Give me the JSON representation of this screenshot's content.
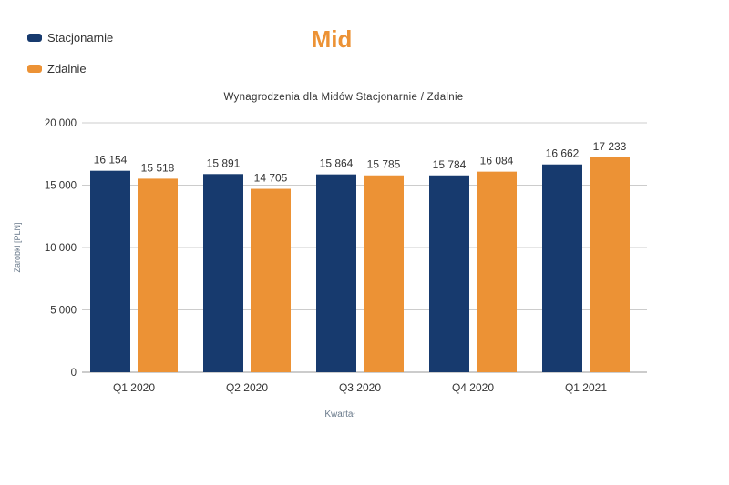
{
  "chart_data": {
    "type": "bar",
    "badge": "Mid",
    "title": "Wynagrodzenia dla Midów Stacjonarnie / Zdalnie",
    "xlabel": "Kwartał",
    "ylabel": "Zarobki [PLN]",
    "ylim": [
      0,
      20000
    ],
    "yticks": [
      0,
      5000,
      10000,
      15000,
      20000
    ],
    "ytick_labels": [
      "0",
      "5 000",
      "10 000",
      "15 000",
      "20 000"
    ],
    "categories": [
      "Q1 2020",
      "Q2 2020",
      "Q3 2020",
      "Q4 2020",
      "Q1 2021"
    ],
    "series": [
      {
        "name": "Stacjonarnie",
        "color": "#173a6e",
        "values": [
          16154,
          15891,
          15864,
          15784,
          16662
        ],
        "labels": [
          "16 154",
          "15 891",
          "15 864",
          "15 784",
          "16 662"
        ]
      },
      {
        "name": "Zdalnie",
        "color": "#ec9235",
        "values": [
          15518,
          14705,
          15785,
          16084,
          17233
        ],
        "labels": [
          "15 518",
          "14 705",
          "15 785",
          "16 084",
          "17 233"
        ]
      }
    ],
    "legend": "top-left",
    "grid": true
  },
  "colors": {
    "badge": "#ec9235",
    "text": "#333333",
    "grid": "#cccccc",
    "axis_label": "#6b7b8c"
  }
}
